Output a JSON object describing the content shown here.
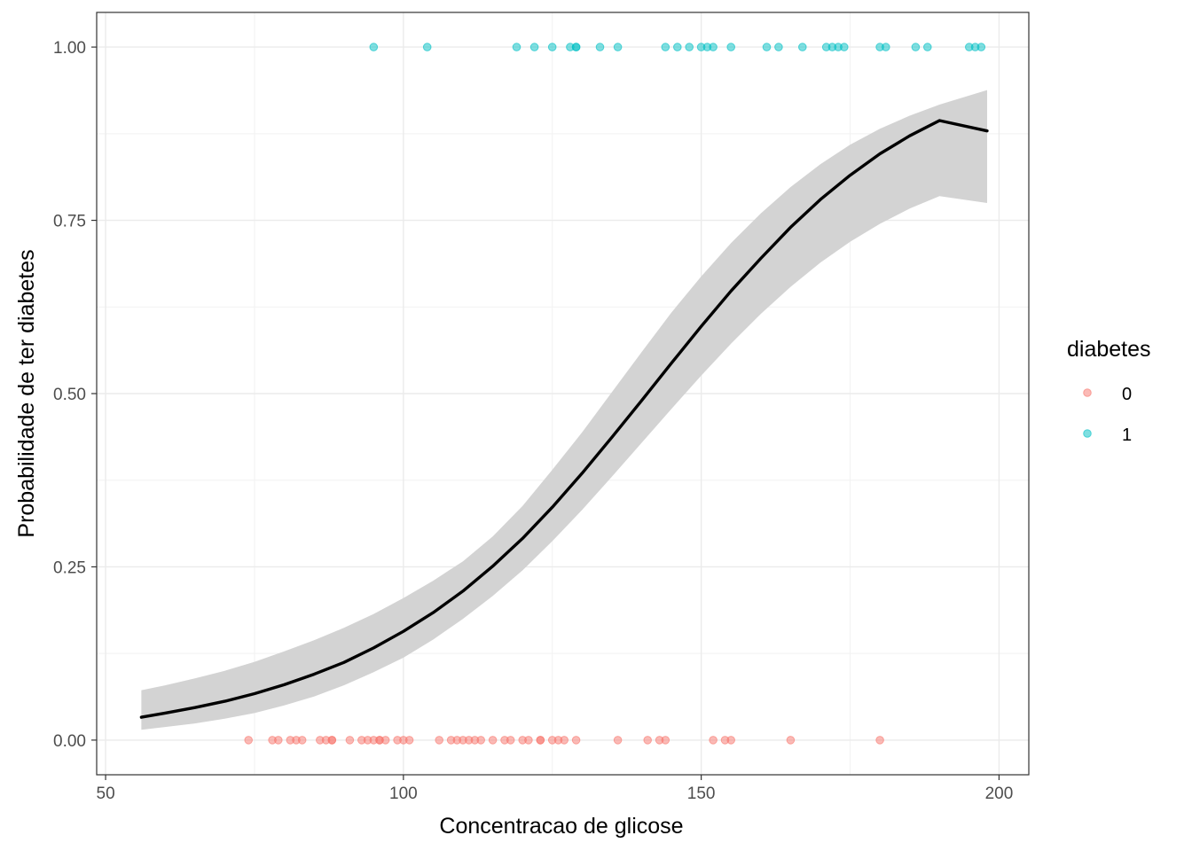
{
  "chart_data": {
    "type": "scatter",
    "title": "",
    "xlabel": "Concentracao de glicose",
    "ylabel": "Probabilidade de ter diabetes",
    "xlim": [
      48.5,
      205
    ],
    "ylim": [
      -0.05,
      1.05
    ],
    "x_ticks": [
      50,
      100,
      150,
      200
    ],
    "x_tick_labels": [
      "50",
      "100",
      "150",
      "200"
    ],
    "y_ticks": [
      0,
      0.25,
      0.5,
      0.75,
      1
    ],
    "y_tick_labels": [
      "0.00",
      "0.25",
      "0.50",
      "0.75",
      "1.00"
    ],
    "grid": true,
    "legend": {
      "title": "diabetes",
      "position": "right",
      "entries": [
        {
          "label": "0",
          "color": "#F8766D"
        },
        {
          "label": "1",
          "color": "#00BFC4"
        }
      ]
    },
    "series": [
      {
        "group": "0",
        "color": "#F8766D",
        "y": 0,
        "x": [
          74,
          78,
          79,
          81,
          82,
          83,
          86,
          87,
          88,
          88,
          91,
          93,
          94,
          95,
          96,
          96,
          97,
          99,
          100,
          101,
          106,
          108,
          109,
          110,
          111,
          112,
          113,
          115,
          117,
          118,
          120,
          121,
          123,
          123,
          125,
          126,
          127,
          129,
          136,
          141,
          143,
          144,
          152,
          154,
          155,
          165,
          180
        ]
      },
      {
        "group": "1",
        "color": "#00BFC4",
        "y": 1,
        "x": [
          95,
          104,
          119,
          122,
          125,
          128,
          129,
          129,
          133,
          136,
          144,
          146,
          148,
          150,
          151,
          152,
          155,
          161,
          163,
          167,
          171,
          172,
          173,
          174,
          180,
          181,
          186,
          188,
          195,
          196,
          197
        ]
      }
    ],
    "fit": {
      "type": "logistic",
      "color": "#000000",
      "band_color": "#D3D3D3",
      "x": [
        56,
        60,
        65,
        70,
        75,
        80,
        85,
        90,
        95,
        100,
        105,
        110,
        115,
        120,
        125,
        130,
        135,
        140,
        145,
        150,
        155,
        160,
        165,
        170,
        175,
        180,
        185,
        190,
        198
      ],
      "y": [
        0.033,
        0.039,
        0.047,
        0.056,
        0.067,
        0.08,
        0.095,
        0.112,
        0.133,
        0.157,
        0.184,
        0.215,
        0.251,
        0.291,
        0.336,
        0.385,
        0.437,
        0.49,
        0.544,
        0.597,
        0.648,
        0.695,
        0.74,
        0.78,
        0.815,
        0.846,
        0.872,
        0.894,
        0.879
      ],
      "ymin": [
        0.015,
        0.019,
        0.024,
        0.031,
        0.039,
        0.05,
        0.063,
        0.079,
        0.098,
        0.119,
        0.145,
        0.175,
        0.208,
        0.245,
        0.287,
        0.332,
        0.38,
        0.429,
        0.478,
        0.526,
        0.572,
        0.615,
        0.654,
        0.689,
        0.719,
        0.745,
        0.767,
        0.785,
        0.775
      ],
      "ymax": [
        0.072,
        0.079,
        0.089,
        0.1,
        0.113,
        0.128,
        0.144,
        0.162,
        0.182,
        0.205,
        0.23,
        0.258,
        0.294,
        0.338,
        0.39,
        0.444,
        0.502,
        0.56,
        0.617,
        0.669,
        0.717,
        0.76,
        0.798,
        0.831,
        0.859,
        0.882,
        0.901,
        0.917,
        0.938
      ]
    }
  }
}
